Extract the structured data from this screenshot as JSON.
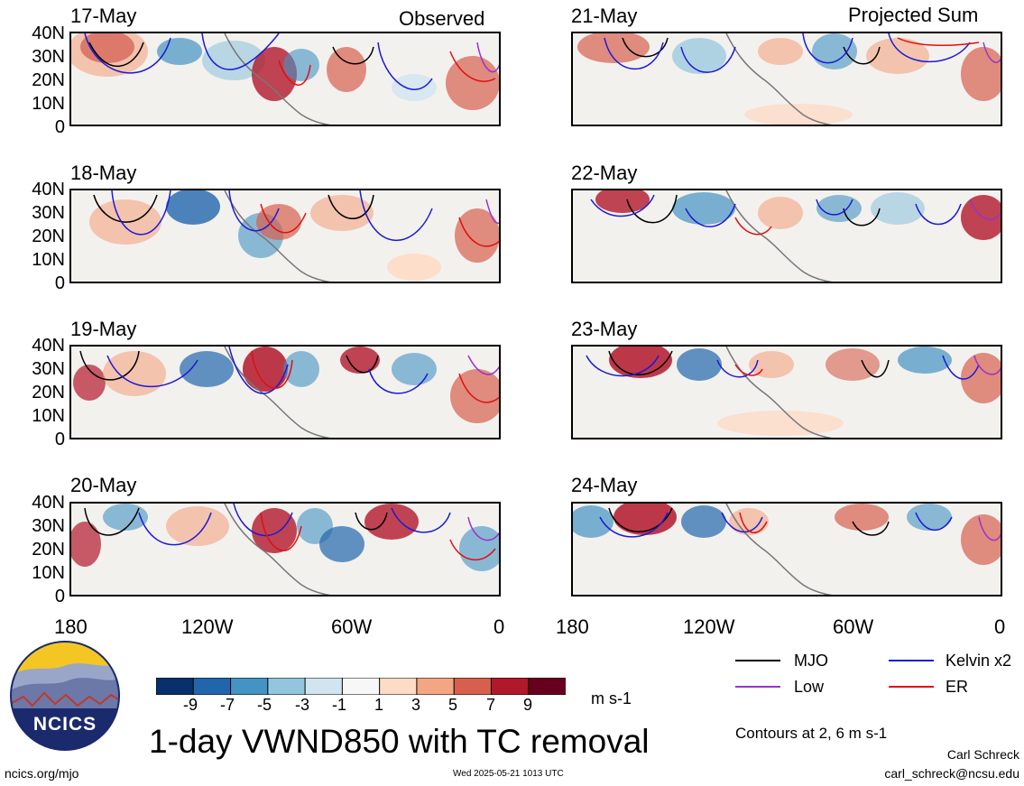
{
  "header": {
    "left": "Observed",
    "right": "Projected Sum"
  },
  "observed_dates": [
    "17-May",
    "18-May",
    "19-May",
    "20-May"
  ],
  "projected_dates": [
    "21-May",
    "22-May",
    "23-May",
    "24-May"
  ],
  "lat_labels": [
    "40N",
    "30N",
    "20N",
    "10N",
    "0"
  ],
  "lon_labels": [
    "180",
    "120W",
    "60W",
    "0"
  ],
  "colorbar": {
    "ticks": [
      "-9",
      "-7",
      "-5",
      "-3",
      "-1",
      "1",
      "3",
      "5",
      "7",
      "9"
    ],
    "units": "m s-1",
    "colors": [
      "#08306b",
      "#2166ac",
      "#4393c3",
      "#92c5de",
      "#d1e5f0",
      "#f7f7f7",
      "#fddbc7",
      "#f4a582",
      "#d6604d",
      "#b2182b",
      "#67001f"
    ]
  },
  "title": "1-day VWND850 with TC removal",
  "legend": {
    "items": [
      {
        "label": "MJO",
        "color": "#000000"
      },
      {
        "label": "Kelvin x2",
        "color": "#1a1ad6"
      },
      {
        "label": "Low",
        "color": "#9a32cd"
      },
      {
        "label": "ER",
        "color": "#e01010"
      }
    ],
    "note": "Contours at 2, 6 m s-1"
  },
  "logo": {
    "text": "NCICS"
  },
  "footer": {
    "url": "ncics.org/mjo",
    "timestamp": "Wed 2025-05-21 1013 UTC",
    "author": "Carl Schreck",
    "email": "carl_schreck@ncsu.edu"
  }
}
